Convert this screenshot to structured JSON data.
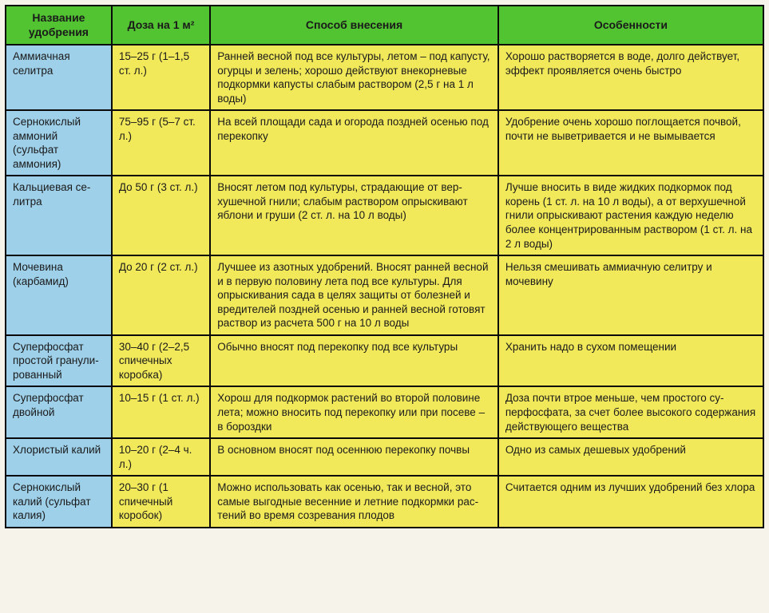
{
  "style": {
    "header_bg": "#52c432",
    "name_bg": "#9ed0e9",
    "body_bg": "#f2e95a",
    "border_color": "#0a0a0a",
    "border_width": "2px",
    "col_widths": [
      "14%",
      "13%",
      "38%",
      "35%"
    ]
  },
  "columns": [
    "Название удобрения",
    "Доза на 1 м²",
    "Способ внесения",
    "Особенности"
  ],
  "rows": [
    {
      "name": "Аммиачная селитра",
      "dose": "15–25 г (1–1,5 ст. л.)",
      "method": "Ранней весной под все культуры, летом – под ка­пусту, огурцы и зелень; хорошо действуют вне­корневые подкормки капусты слабым раство­ром (2,5 г на 1 л воды)",
      "notes": "Хорошо растворяется в воде, долго дей­ствует, эффект проявляется очень быстро"
    },
    {
      "name": "Сернокислый аммоний (сульфат аммония)",
      "dose": "75–95 г (5–7 ст. л.)",
      "method": "На всей площади сада и огорода поздней осенью под перекопку",
      "notes": "Удобрение очень хорошо поглощается поч­вой, почти не выветривается и не вымы­вается"
    },
    {
      "name": "Кальциевая се­литра",
      "dose": "До 50 г (3 ст. л.)",
      "method": "Вносят летом под культуры, страдающие от вер­хушечной гнили; слабым раствором опрыскивают яблони и груши (2 ст. л. на 10 л воды)",
      "notes": "Лучше вносить в виде жидких подкор­мок под корень (1 ст. л. на 10 л воды), а от верхушечной гнили опрыскивают растения каждую неделю более концен­трированным раствором (1 ст. л. на 2 л воды)"
    },
    {
      "name": "Мочевина (карбамид)",
      "dose": "До 20 г (2 ст. л.)",
      "method": "Лучшее из азотных удобрений. Вносят ранней вес­ной и в первую половину лета под все культуры. Для опрыскивания сада в целях защиты от бо­лезней и вредителей поздней осенью и ранней весной готовят раствор из расчета 500 г на 10 л воды",
      "notes": "Нельзя смешивать аммиачную селитру и мочевину"
    },
    {
      "name": "Суперфосфат простой гранули­рованный",
      "dose": "30–40 г (2–2,5 спичеч­ных коробка)",
      "method": "Обычно вносят под перекопку под все культуры",
      "notes": "Хранить надо в сухом помещении"
    },
    {
      "name": "Суперфосфат двойной",
      "dose": "10–15 г (1 ст. л.)",
      "method": "Хорош для подкормок растений во второй поло­вине лета; можно вносить под перекопку или при посеве – в бороздки",
      "notes": "Доза почти втрое меньше, чем простого су­перфосфата, за счет более высокого со­держания действующего вещества"
    },
    {
      "name": "Хлористый калий",
      "dose": "10–20 г (2–4 ч. л.)",
      "method": "В основном вносят под осеннюю перекопку почвы",
      "notes": "Одно из самых дешевых удобрений"
    },
    {
      "name": "Сернокислый калий (сульфат калия)",
      "dose": "20–30 г (1 спичечный коробок)",
      "method": "Можно использовать как осенью, так и весной, это самые выгодные весенние и летние подкормки рас­тений во время созревания плодов",
      "notes": "Считается одним из лучших удобрений без хлора"
    }
  ]
}
